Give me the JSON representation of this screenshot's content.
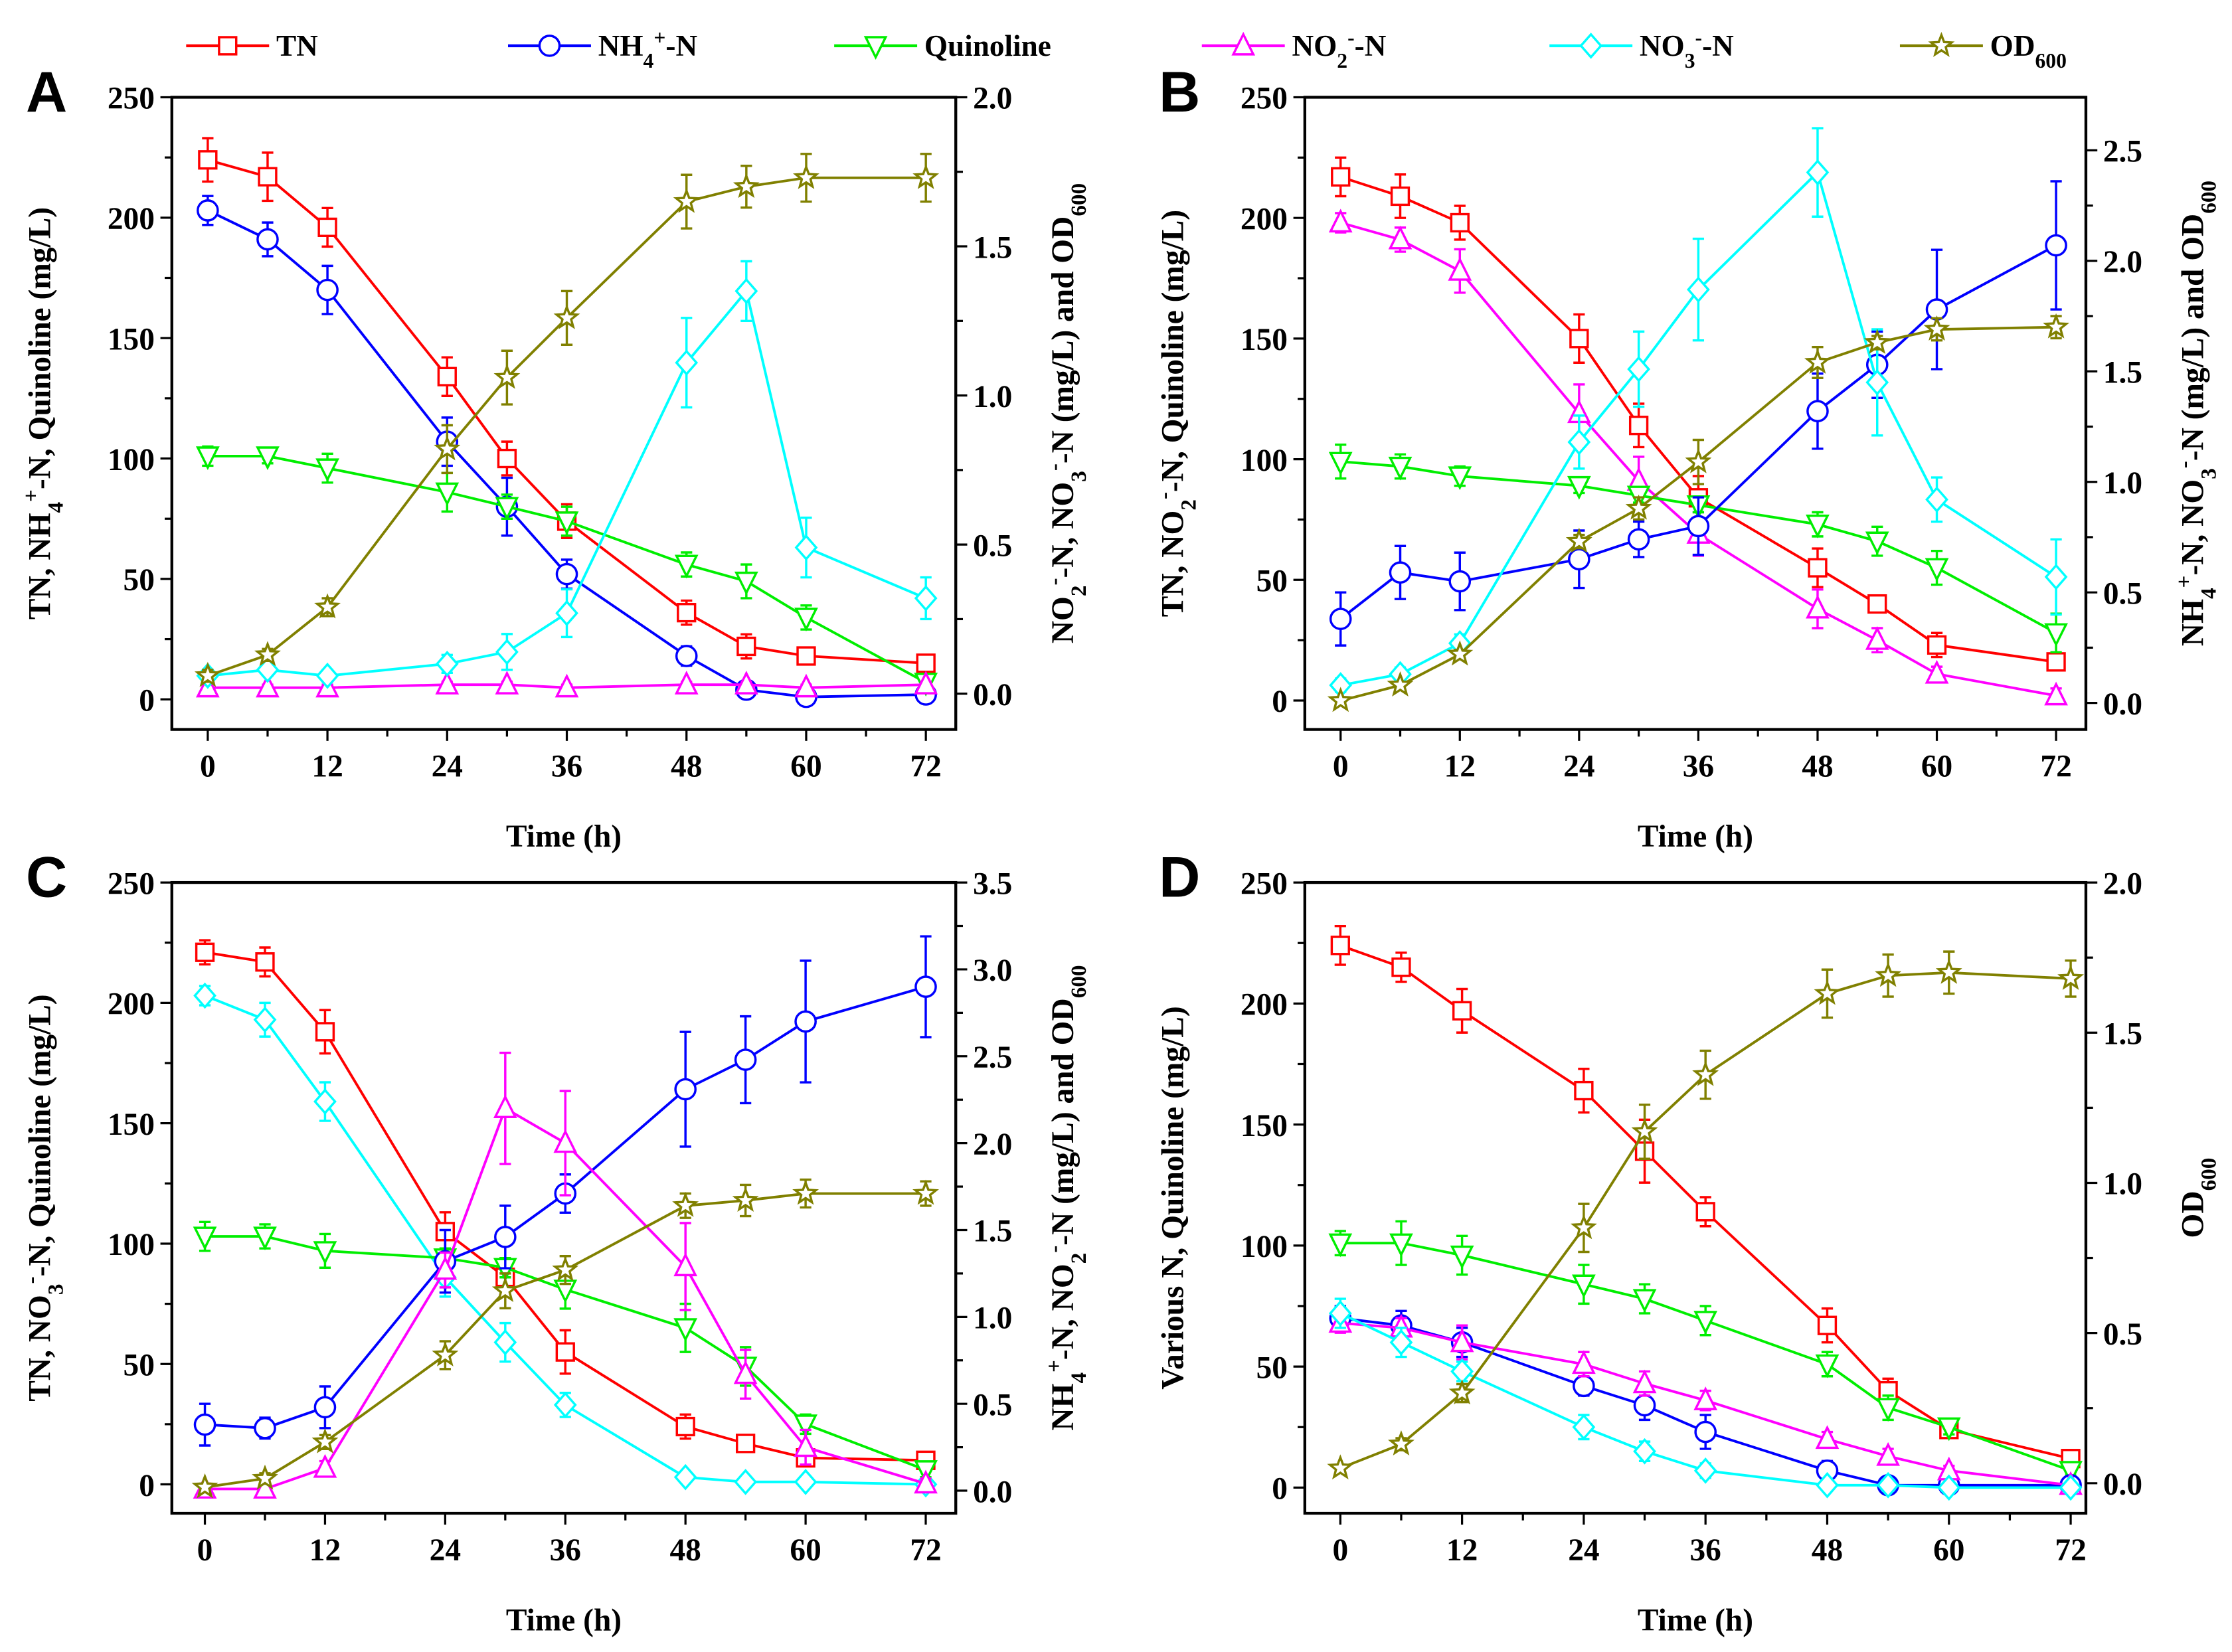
{
  "legend": [
    {
      "key": "TN",
      "label": [
        [
          "TN",
          ""
        ]
      ]
    },
    {
      "key": "NH4",
      "label": [
        [
          "NH",
          ""
        ],
        [
          "4",
          "sub"
        ],
        [
          "+",
          "sup"
        ],
        [
          "-N",
          ""
        ]
      ]
    },
    {
      "key": "Quinoline",
      "label": [
        [
          "Quinoline",
          ""
        ]
      ]
    },
    {
      "key": "NO2",
      "label": [
        [
          "NO",
          ""
        ],
        [
          "2",
          "sub"
        ],
        [
          "-",
          "sup"
        ],
        [
          "-N",
          ""
        ]
      ]
    },
    {
      "key": "NO3",
      "label": [
        [
          "NO",
          ""
        ],
        [
          "3",
          "sub"
        ],
        [
          "-",
          "sup"
        ],
        [
          "-N",
          ""
        ]
      ]
    },
    {
      "key": "OD",
      "label": [
        [
          "OD",
          ""
        ],
        [
          "600",
          "sub"
        ]
      ]
    }
  ],
  "series_styles": {
    "TN": {
      "color": "#ff0000",
      "marker": "square"
    },
    "NH4": {
      "color": "#0000ff",
      "marker": "circle"
    },
    "Quinoline": {
      "color": "#00ee00",
      "marker": "triangle-down"
    },
    "NO2": {
      "color": "#ff00ff",
      "marker": "triangle-up"
    },
    "NO3": {
      "color": "#00ffff",
      "marker": "diamond"
    },
    "OD": {
      "color": "#808000",
      "marker": "star"
    }
  },
  "chart_data": [
    {
      "panel": "A",
      "type": "line",
      "xlabel": "Time (h)",
      "ylabel_left": [
        [
          "TN, NH",
          ""
        ],
        [
          "4",
          "sub"
        ],
        [
          "+",
          "sup"
        ],
        [
          "-N, Quinoline (mg/L)",
          ""
        ]
      ],
      "ylabel_right": [
        [
          "NO",
          ""
        ],
        [
          "2",
          "sub"
        ],
        [
          "-",
          "sup"
        ],
        [
          "-N, NO",
          ""
        ],
        [
          "3",
          "sub"
        ],
        [
          "-",
          "sup"
        ],
        [
          "-N (mg/L) and OD",
          ""
        ],
        [
          "600",
          "sub"
        ]
      ],
      "x": [
        0,
        6,
        12,
        24,
        30,
        36,
        48,
        54,
        60,
        72
      ],
      "xticks": [
        0,
        12,
        24,
        36,
        48,
        60,
        72
      ],
      "xlim": [
        -3.6,
        75
      ],
      "ylim_left": [
        -12.5,
        250
      ],
      "yticks_left": [
        0,
        50,
        100,
        150,
        200,
        250
      ],
      "ylim_right": [
        -0.12,
        2.0
      ],
      "yticks_right": [
        "0.0",
        "0.5",
        "1.0",
        "1.5",
        "2.0"
      ],
      "series": [
        {
          "key": "TN",
          "axis": "left",
          "values": [
            224,
            217,
            196,
            134,
            100,
            74,
            36,
            22,
            18,
            15
          ],
          "err": [
            9,
            10,
            8,
            8,
            7,
            7,
            5,
            5,
            3,
            2
          ]
        },
        {
          "key": "NH4",
          "axis": "left",
          "values": [
            203,
            191,
            170,
            107,
            80,
            52,
            18,
            4,
            1,
            2
          ],
          "err": [
            6,
            7,
            10,
            10,
            12,
            6,
            4,
            2,
            1,
            1
          ]
        },
        {
          "key": "Quinoline",
          "axis": "left",
          "values": [
            101,
            101,
            96,
            86,
            80,
            74,
            56,
            49,
            34,
            7
          ],
          "err": [
            4,
            3,
            6,
            8,
            5,
            6,
            5,
            7,
            5,
            2
          ]
        },
        {
          "key": "NO2",
          "axis": "right",
          "values": [
            0.02,
            0.02,
            0.02,
            0.03,
            0.03,
            0.02,
            0.03,
            0.03,
            0.02,
            0.03
          ],
          "err": [
            0.01,
            0.01,
            0.01,
            0.01,
            0.01,
            0.01,
            0.01,
            0.01,
            0.01,
            0.01
          ]
        },
        {
          "key": "NO3",
          "axis": "right",
          "values": [
            0.06,
            0.08,
            0.06,
            0.1,
            0.14,
            0.27,
            1.11,
            1.35,
            0.49,
            0.32
          ],
          "err": [
            0.02,
            0.02,
            0.02,
            0.03,
            0.06,
            0.08,
            0.15,
            0.1,
            0.1,
            0.07
          ]
        },
        {
          "key": "OD",
          "axis": "right",
          "values": [
            0.06,
            0.13,
            0.29,
            0.82,
            1.06,
            1.26,
            1.65,
            1.7,
            1.73,
            1.73
          ],
          "err": [
            0.02,
            0.02,
            0.03,
            0.08,
            0.09,
            0.09,
            0.09,
            0.07,
            0.08,
            0.08
          ]
        }
      ]
    },
    {
      "panel": "B",
      "type": "line",
      "xlabel": "Time (h)",
      "ylabel_left": [
        [
          "TN, NO",
          ""
        ],
        [
          "2",
          "sub"
        ],
        [
          "-",
          "sup"
        ],
        [
          "-N, Quinoline (mg/L)",
          ""
        ]
      ],
      "ylabel_right": [
        [
          "NH",
          ""
        ],
        [
          "4",
          "sub"
        ],
        [
          "+",
          "sup"
        ],
        [
          "-N, NO",
          ""
        ],
        [
          "3",
          "sub"
        ],
        [
          "-",
          "sup"
        ],
        [
          "-N (mg/L) and OD",
          ""
        ],
        [
          "600",
          "sub"
        ]
      ],
      "x": [
        0,
        6,
        12,
        24,
        30,
        36,
        48,
        54,
        60,
        72
      ],
      "xticks": [
        0,
        12,
        24,
        36,
        48,
        60,
        72
      ],
      "xlim": [
        -3.6,
        75
      ],
      "ylim_left": [
        -12,
        250
      ],
      "yticks_left": [
        0,
        50,
        100,
        150,
        200,
        250
      ],
      "ylim_right": [
        -0.12,
        2.74
      ],
      "yticks_right": [
        "0.0",
        "0.5",
        "1.0",
        "1.5",
        "2.0",
        "2.5"
      ],
      "series": [
        {
          "key": "TN",
          "axis": "left",
          "values": [
            217,
            209,
            198,
            150,
            114,
            84,
            55,
            40,
            23,
            16
          ],
          "err": [
            8,
            9,
            7,
            10,
            9,
            9,
            8,
            2,
            5,
            2
          ]
        },
        {
          "key": "NO2",
          "axis": "left",
          "values": [
            198,
            191,
            178,
            119,
            91,
            69,
            38,
            25,
            11,
            2
          ],
          "err": [
            4,
            5,
            9,
            12,
            10,
            9,
            8,
            5,
            3,
            3
          ]
        },
        {
          "key": "Quinoline",
          "axis": "left",
          "values": [
            99,
            97,
            93,
            89,
            85,
            81,
            73,
            66,
            55,
            28
          ],
          "err": [
            7,
            5,
            4,
            3,
            3,
            3,
            5,
            6,
            7,
            8
          ]
        },
        {
          "key": "NH4",
          "axis": "right",
          "values": [
            0.38,
            0.59,
            0.55,
            0.65,
            0.74,
            0.8,
            1.32,
            1.53,
            1.78,
            2.07
          ],
          "err": [
            0.12,
            0.12,
            0.13,
            0.13,
            0.08,
            0.13,
            0.17,
            0.15,
            0.27,
            0.29
          ]
        },
        {
          "key": "NO3",
          "axis": "right",
          "values": [
            0.08,
            0.13,
            0.27,
            1.18,
            1.51,
            1.87,
            2.4,
            1.45,
            0.92,
            0.57
          ],
          "err": [
            0.03,
            0.03,
            0.04,
            0.12,
            0.17,
            0.23,
            0.2,
            0.24,
            0.1,
            0.17
          ]
        },
        {
          "key": "OD",
          "axis": "right",
          "values": [
            0.01,
            0.08,
            0.22,
            0.73,
            0.88,
            1.09,
            1.54,
            1.63,
            1.69,
            1.7
          ],
          "err": [
            0.01,
            0.01,
            0.02,
            0.03,
            0.05,
            0.1,
            0.07,
            0.03,
            0.05,
            0.05
          ]
        }
      ]
    },
    {
      "panel": "C",
      "type": "line",
      "xlabel": "Time (h)",
      "ylabel_left": [
        [
          "TN, NO",
          ""
        ],
        [
          "3",
          "sub"
        ],
        [
          "-",
          "sup"
        ],
        [
          "-N, Quinoline (mg/L)",
          ""
        ]
      ],
      "ylabel_right": [
        [
          "NH",
          ""
        ],
        [
          "4",
          "sub"
        ],
        [
          "+",
          "sup"
        ],
        [
          "-N, NO",
          ""
        ],
        [
          "2",
          "sub"
        ],
        [
          "-",
          "sup"
        ],
        [
          "-N (mg/L) and OD",
          ""
        ],
        [
          "600",
          "sub"
        ]
      ],
      "x": [
        0,
        6,
        12,
        24,
        30,
        36,
        48,
        54,
        60,
        72
      ],
      "xticks": [
        0,
        12,
        24,
        36,
        48,
        60,
        72
      ],
      "xlim": [
        -3.3,
        75
      ],
      "ylim_left": [
        -12,
        250
      ],
      "yticks_left": [
        0,
        50,
        100,
        150,
        200,
        250
      ],
      "ylim_right": [
        -0.13,
        3.5
      ],
      "yticks_right": [
        "0.0",
        "0.5",
        "1.0",
        "1.5",
        "2.0",
        "2.5",
        "3.0",
        "3.5"
      ],
      "series": [
        {
          "key": "TN",
          "axis": "left",
          "values": [
            221,
            217,
            188,
            105,
            86,
            55,
            24,
            17,
            11,
            10
          ],
          "err": [
            5,
            6,
            9,
            8,
            8,
            9,
            5,
            3,
            2,
            3
          ]
        },
        {
          "key": "NO3",
          "axis": "left",
          "values": [
            203,
            193,
            159,
            86,
            59,
            33,
            3,
            1,
            1,
            0
          ],
          "err": [
            4,
            7,
            8,
            8,
            8,
            5,
            2,
            1,
            1,
            1
          ]
        },
        {
          "key": "Quinoline",
          "axis": "left",
          "values": [
            103,
            103,
            97,
            94,
            90,
            81,
            65,
            49,
            25,
            6
          ],
          "err": [
            6,
            5,
            7,
            4,
            4,
            8,
            10,
            8,
            4,
            3
          ]
        },
        {
          "key": "NH4",
          "axis": "right",
          "values": [
            0.38,
            0.36,
            0.48,
            1.32,
            1.46,
            1.71,
            2.31,
            2.48,
            2.7,
            2.9
          ],
          "err": [
            0.12,
            0.06,
            0.12,
            0.18,
            0.18,
            0.11,
            0.33,
            0.25,
            0.35,
            0.29
          ]
        },
        {
          "key": "NO2",
          "axis": "right",
          "values": [
            0.01,
            0.01,
            0.13,
            1.27,
            2.2,
            2.0,
            1.29,
            0.67,
            0.25,
            0.04
          ],
          "err": [
            0.02,
            0.02,
            0.04,
            0.1,
            0.32,
            0.3,
            0.25,
            0.14,
            0.1,
            0.03
          ]
        },
        {
          "key": "OD",
          "axis": "right",
          "values": [
            0.02,
            0.07,
            0.28,
            0.78,
            1.15,
            1.27,
            1.64,
            1.67,
            1.71,
            1.71
          ],
          "err": [
            0.02,
            0.03,
            0.04,
            0.08,
            0.1,
            0.08,
            0.07,
            0.09,
            0.08,
            0.07
          ]
        }
      ]
    },
    {
      "panel": "D",
      "type": "line",
      "xlabel": "Time (h)",
      "ylabel_left": [
        [
          "Various N, Quinoline (mg/L)",
          ""
        ]
      ],
      "ylabel_right": [
        [
          "OD",
          ""
        ],
        [
          "600",
          "sub"
        ]
      ],
      "x": [
        0,
        6,
        12,
        24,
        30,
        36,
        48,
        54,
        60,
        72
      ],
      "xticks": [
        0,
        12,
        24,
        36,
        48,
        60,
        72
      ],
      "xlim": [
        -3.5,
        73.5
      ],
      "ylim_left": [
        -10.6,
        250
      ],
      "yticks_left": [
        0,
        50,
        100,
        150,
        200,
        250
      ],
      "ylim_right": [
        -0.1,
        2.0
      ],
      "yticks_right": [
        "0.0",
        "0.5",
        "1.0",
        "1.5",
        "2.0"
      ],
      "series": [
        {
          "key": "TN",
          "axis": "left",
          "values": [
            224,
            215,
            197,
            164,
            139,
            114,
            67,
            40,
            24,
            12
          ],
          "err": [
            8,
            6,
            9,
            9,
            13,
            6,
            7,
            5,
            3,
            3
          ]
        },
        {
          "key": "Quinoline",
          "axis": "left",
          "values": [
            101,
            101,
            96,
            84,
            78,
            69,
            51,
            33,
            25,
            7
          ],
          "err": [
            5,
            9,
            8,
            8,
            6,
            6,
            5,
            5,
            3,
            2
          ]
        },
        {
          "key": "NH4",
          "axis": "left",
          "values": [
            70,
            67,
            60,
            42,
            34,
            23,
            7,
            1,
            1,
            1
          ],
          "err": [
            5,
            6,
            6,
            4,
            6,
            7,
            4,
            2,
            2,
            2
          ]
        },
        {
          "key": "NO2",
          "axis": "left",
          "values": [
            68,
            66,
            60,
            51,
            43,
            36,
            20,
            13,
            7,
            1
          ],
          "err": [
            4,
            4,
            7,
            5,
            5,
            4,
            3,
            3,
            2,
            1
          ]
        },
        {
          "key": "NO3",
          "axis": "left",
          "values": [
            72,
            60,
            48,
            25,
            15,
            7,
            1,
            1,
            0,
            0
          ],
          "err": [
            6,
            6,
            4,
            5,
            4,
            3,
            2,
            2,
            2,
            2
          ]
        },
        {
          "key": "OD",
          "axis": "right",
          "values": [
            0.05,
            0.13,
            0.3,
            0.85,
            1.17,
            1.36,
            1.63,
            1.69,
            1.7,
            1.68
          ],
          "err": [
            0.01,
            0.02,
            0.03,
            0.08,
            0.09,
            0.08,
            0.08,
            0.07,
            0.07,
            0.06
          ]
        }
      ]
    }
  ]
}
